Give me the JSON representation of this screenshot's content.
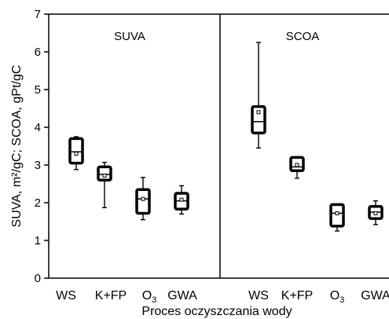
{
  "chart_data": {
    "type": "box",
    "ylabel": "SUVA, m²/gC; SCOA, gPt/gC",
    "xlabel": "Proces oczyszczania wody",
    "ylim": [
      0,
      7
    ],
    "yticks": [
      "0",
      "1",
      "2",
      "3",
      "4",
      "5",
      "6",
      "7"
    ],
    "categories": [
      "WS",
      "K+FP",
      "O₃",
      "GWA"
    ],
    "panels": [
      {
        "title": "SUVA",
        "boxes": [
          {
            "category": "WS",
            "min": 2.88,
            "q1": 3.05,
            "median": 3.35,
            "q3": 3.7,
            "max": 3.75,
            "mean": 3.3
          },
          {
            "category": "K+FP",
            "min": 1.87,
            "q1": 2.6,
            "median": 2.75,
            "q3": 2.95,
            "max": 3.07,
            "mean": 2.72
          },
          {
            "category": "O₃",
            "min": 1.55,
            "q1": 1.72,
            "median": 2.1,
            "q3": 2.35,
            "max": 2.67,
            "mean": 2.1
          },
          {
            "category": "GWA",
            "min": 1.7,
            "q1": 1.83,
            "median": 2.05,
            "q3": 2.25,
            "max": 2.45,
            "mean": 2.08
          }
        ]
      },
      {
        "title": "SCOA",
        "boxes": [
          {
            "category": "WS",
            "min": 3.45,
            "q1": 3.85,
            "median": 4.15,
            "q3": 4.55,
            "max": 6.25,
            "mean": 4.4
          },
          {
            "category": "K+FP",
            "min": 2.65,
            "q1": 2.85,
            "median": 2.95,
            "q3": 3.2,
            "max": 3.22,
            "mean": 3.0
          },
          {
            "category": "O₃",
            "min": 1.25,
            "q1": 1.38,
            "median": 1.72,
            "q3": 1.95,
            "max": 1.97,
            "mean": 1.72
          },
          {
            "category": "GWA",
            "min": 1.42,
            "q1": 1.58,
            "median": 1.75,
            "q3": 1.9,
            "max": 2.05,
            "mean": 1.72
          }
        ]
      }
    ]
  }
}
